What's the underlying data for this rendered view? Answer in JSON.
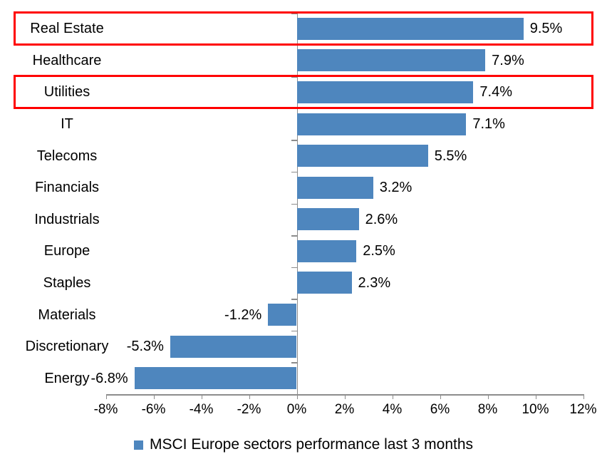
{
  "chart_data": {
    "type": "bar",
    "orientation": "horizontal",
    "title": "",
    "categories": [
      "Real Estate",
      "Healthcare",
      "Utilities",
      "IT",
      "Telecoms",
      "Financials",
      "Industrials",
      "Europe",
      "Staples",
      "Materials",
      "Discretionary",
      "Energy"
    ],
    "values": [
      9.5,
      7.9,
      7.4,
      7.1,
      5.5,
      3.2,
      2.6,
      2.5,
      2.3,
      -1.2,
      -5.3,
      -6.8
    ],
    "value_labels": [
      "9.5%",
      "7.9%",
      "7.4%",
      "7.1%",
      "5.5%",
      "3.2%",
      "2.6%",
      "2.5%",
      "2.3%",
      "-1.2%",
      "-5.3%",
      "-6.8%"
    ],
    "x_tick_values": [
      -8,
      -6,
      -4,
      -2,
      0,
      2,
      4,
      6,
      8,
      10,
      12
    ],
    "x_tick_labels": [
      "-8%",
      "-6%",
      "-4%",
      "-2%",
      "0%",
      "2%",
      "4%",
      "6%",
      "8%",
      "10%",
      "12%"
    ],
    "xlim": [
      -8,
      12
    ],
    "grid": false,
    "legend": "MSCI Europe sectors performance last 3 months",
    "legend_position": "bottom",
    "bar_color": "#4E86BE",
    "axis_color": "#8C8C8C",
    "highlight_color": "#FF0000",
    "highlighted_categories": [
      "Real Estate",
      "Utilities"
    ]
  }
}
